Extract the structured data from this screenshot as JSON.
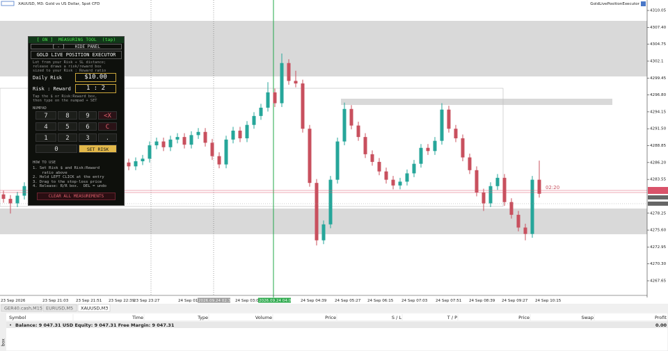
{
  "window": {
    "title": "XAUUSD, M3:  Gold vs US Dollar, Spot CFD",
    "expert": "GoldLivePositionExecutor",
    "countdown": "02:20"
  },
  "chart_data": {
    "type": "candlestick",
    "candles": [
      [
        4281.2,
        4281.8,
        4279.9,
        4280.5
      ],
      [
        4280.5,
        4281.1,
        4278.2,
        4279.8
      ],
      [
        4279.8,
        4281.6,
        4279.2,
        4281.0
      ],
      [
        4281.0,
        4283.1,
        4280.4,
        4282.5
      ],
      [
        4282.5,
        4284.6,
        4281.9,
        4284.0
      ],
      [
        4284.0,
        4284.6,
        4282.4,
        4283.0
      ],
      [
        4283.0,
        4286.1,
        4282.4,
        4285.5
      ],
      [
        4285.5,
        4286.6,
        4284.9,
        4286.0
      ],
      [
        4286.0,
        4286.6,
        4284.2,
        4284.8
      ],
      [
        4284.8,
        4287.1,
        4284.2,
        4286.5
      ],
      [
        4286.5,
        4287.8,
        4285.9,
        4287.2
      ],
      [
        4287.2,
        4287.8,
        4285.4,
        4286.0
      ],
      [
        4286.0,
        4288.1,
        4285.4,
        4287.5
      ],
      [
        4287.5,
        4288.6,
        4286.9,
        4288.0
      ],
      [
        4288.0,
        4288.6,
        4286.4,
        4287.0
      ],
      [
        4287.0,
        4287.6,
        4285.7,
        4286.3
      ],
      [
        4286.3,
        4286.9,
        4285.2,
        4285.8
      ],
      [
        4285.8,
        4286.8,
        4285.2,
        4286.2
      ],
      [
        4286.2,
        4286.8,
        4285.0,
        4285.6
      ],
      [
        4285.6,
        4287.0,
        4285.0,
        4286.4
      ],
      [
        4286.4,
        4287.4,
        4285.8,
        4286.8
      ],
      [
        4286.8,
        4289.5,
        4286.2,
        4288.9
      ],
      [
        4288.9,
        4290.1,
        4288.3,
        4289.5
      ],
      [
        4289.5,
        4290.1,
        4288.0,
        4288.6
      ],
      [
        4288.6,
        4290.4,
        4288.0,
        4289.8
      ],
      [
        4289.8,
        4290.8,
        4289.2,
        4290.2
      ],
      [
        4290.2,
        4290.8,
        4288.4,
        4289.0
      ],
      [
        4289.0,
        4291.1,
        4288.4,
        4290.5
      ],
      [
        4290.5,
        4291.6,
        4289.9,
        4291.0
      ],
      [
        4291.0,
        4291.6,
        4288.7,
        4289.3
      ],
      [
        4289.3,
        4289.9,
        4286.6,
        4287.2
      ],
      [
        4287.2,
        4287.8,
        4285.3,
        4285.9
      ],
      [
        4285.9,
        4290.4,
        4285.3,
        4289.8
      ],
      [
        4289.8,
        4291.8,
        4289.2,
        4291.2
      ],
      [
        4291.2,
        4291.8,
        4289.4,
        4290.0
      ],
      [
        4290.0,
        4292.7,
        4289.4,
        4292.1
      ],
      [
        4292.1,
        4294.1,
        4291.5,
        4293.5
      ],
      [
        4293.5,
        4295.4,
        4292.9,
        4294.8
      ],
      [
        4294.8,
        4298.8,
        4294.2,
        4297.2
      ],
      [
        4297.2,
        4297.8,
        4294.9,
        4295.5
      ],
      [
        4295.5,
        4303.3,
        4294.9,
        4301.8
      ],
      [
        4301.8,
        4302.4,
        4298.4,
        4299.0
      ],
      [
        4299.0,
        4300.6,
        4298.0,
        4298.6
      ],
      [
        4298.6,
        4299.2,
        4290.9,
        4291.5
      ],
      [
        4291.5,
        4292.1,
        4282.4,
        4283.0
      ],
      [
        4283.0,
        4283.6,
        4273.2,
        4274.0
      ],
      [
        4274.0,
        4277.1,
        4273.4,
        4276.5
      ],
      [
        4276.5,
        4284.1,
        4275.9,
        4283.5
      ],
      [
        4283.5,
        4290.1,
        4282.9,
        4289.5
      ],
      [
        4289.5,
        4295.6,
        4288.9,
        4294.6
      ],
      [
        4294.6,
        4295.2,
        4291.4,
        4292.0
      ],
      [
        4292.0,
        4292.6,
        4289.6,
        4290.2
      ],
      [
        4290.2,
        4290.8,
        4286.9,
        4287.5
      ],
      [
        4287.5,
        4288.1,
        4285.7,
        4286.3
      ],
      [
        4286.3,
        4286.9,
        4284.2,
        4284.8
      ],
      [
        4284.8,
        4285.4,
        4282.9,
        4283.5
      ],
      [
        4283.5,
        4284.1,
        4282.0,
        4282.6
      ],
      [
        4282.6,
        4283.8,
        4282.0,
        4283.2
      ],
      [
        4283.2,
        4285.1,
        4282.6,
        4284.5
      ],
      [
        4284.5,
        4286.6,
        4283.9,
        4286.0
      ],
      [
        4286.0,
        4289.1,
        4285.4,
        4288.5
      ],
      [
        4288.5,
        4289.1,
        4287.4,
        4288.0
      ],
      [
        4288.0,
        4290.2,
        4287.4,
        4289.6
      ],
      [
        4289.6,
        4295.5,
        4289.0,
        4294.5
      ],
      [
        4294.5,
        4295.1,
        4290.9,
        4291.5
      ],
      [
        4291.5,
        4292.1,
        4289.4,
        4290.0
      ],
      [
        4290.0,
        4290.6,
        4286.4,
        4287.0
      ],
      [
        4287.0,
        4287.6,
        4284.4,
        4285.0
      ],
      [
        4285.0,
        4285.6,
        4280.9,
        4281.5
      ],
      [
        4281.5,
        4282.1,
        4278.6,
        4279.8
      ],
      [
        4279.8,
        4283.1,
        4279.2,
        4282.5
      ],
      [
        4282.5,
        4284.4,
        4281.9,
        4283.8
      ],
      [
        4283.8,
        4284.4,
        4279.4,
        4280.0
      ],
      [
        4280.0,
        4280.6,
        4277.4,
        4278.0
      ],
      [
        4278.0,
        4278.6,
        4275.4,
        4276.0
      ],
      [
        4276.0,
        4276.6,
        4274.0,
        4275.0
      ],
      [
        4275.0,
        4284.1,
        4274.4,
        4283.5
      ],
      [
        4283.5,
        4286.5,
        4280.7,
        4281.3
      ]
    ],
    "ylim": [
      4265.36,
      4311.69
    ],
    "yticks": [
      4310.05,
      {
        "value": 4307.4,
        "label": "4307.40"
      },
      4304.75,
      4302.1,
      4299.45,
      {
        "value": 4296.8,
        "label": "4296.80"
      },
      4294.15,
      {
        "value": 4291.5,
        "label": "4291.50"
      },
      4288.85,
      {
        "value": 4286.2,
        "label": "4286.20"
      },
      4283.55,
      4278.25,
      {
        "value": 4275.6,
        "label": "4275.60"
      },
      4272.95,
      {
        "value": 4270.3,
        "label": "4270.30"
      },
      4267.65
    ],
    "xlabels": [
      "23 Sep 2026",
      "23 Sep 21:03",
      "23 Sep 21:51",
      "23 Sep 22:39",
      "23 Sep 23:27",
      "24 Sep 01:27",
      "2026.09.24 02:34",
      "24 Sep 03:03",
      "2026.09.24 04:06",
      "24 Sep 04:39",
      "24 Sep 05:27",
      "24 Sep 06:15",
      "24 Sep 07:03",
      "24 Sep 07:51",
      "24 Sep 08:39",
      "24 Sep 09:27",
      "24 Sep 10:15"
    ],
    "colors": {
      "up": "#26a69a",
      "down": "#c8505e"
    }
  },
  "panel": {
    "toggle": "[ ON ]  MEASURING TOOL  (tap)",
    "hide": "[ - ]    HIDE PANEL",
    "title": "GOLD LIVE POSITION EXECUTOR",
    "description": [
      "Lot from your Risk ÷ SL distance;",
      "release draws a risk/reward box",
      "sized to your Risk : Reward ratio"
    ],
    "risk_label": "Daily Risk",
    "risk_value": "$10.00",
    "rr_label": "Risk : Reward",
    "rr_value": "1 : 2",
    "hint": [
      "Tap the $ or Risk:Reward box,",
      "then type on the numpad + SET"
    ],
    "numpad_label": "NUMPAD",
    "keys": [
      [
        "7",
        "8",
        "9",
        "<X"
      ],
      [
        "4",
        "5",
        "6",
        "C"
      ],
      [
        "1",
        "2",
        "3",
        "."
      ],
      [
        "0",
        "SET RISK"
      ]
    ],
    "howto_label": "HOW TO USE",
    "howto": [
      "1. Set Risk $ and Risk:Reward",
      "    ratio above",
      "2. Hold LEFT CLICK at the entry",
      "3. Drag to the stop-loss price",
      "4. Release: R/R box.  DEL = undo"
    ],
    "clear": "CLEAR ALL MEASUREMENTS"
  },
  "tabs": [
    "GER40.cash,M15",
    "EURUSD,M5",
    "XAUUSD,M3"
  ],
  "toolbox": {
    "columns": [
      "Symbol",
      "Time",
      "Type",
      "Volume",
      "Price",
      "S / L",
      "T / P",
      "Price",
      "Swap",
      "Profit"
    ],
    "balance": "Balance: 9 047.31 USD  Equity: 9 047.31  Free Margin: 9 047.31",
    "profit": "0.00",
    "side": "box"
  }
}
